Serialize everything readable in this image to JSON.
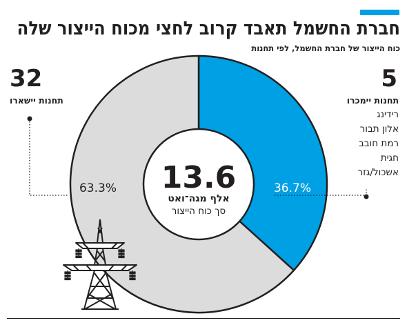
{
  "header": {
    "title": "חברת החשמל תאבד קרוב לחצי מכוח הייצור שלה",
    "subtitle": "כוח הייצור של חברת החשמל, לפי תחנות"
  },
  "left_group": {
    "count": "32",
    "label": "תחנות יישארו"
  },
  "right_group": {
    "count": "5",
    "label": "תחנות יימכרו",
    "stations": [
      "רידינג",
      "אלון תבור",
      "רמת חובב",
      "חגית",
      "אשכול/גזר"
    ]
  },
  "center": {
    "value": "13.6",
    "unit": "אלף מגה־ואט",
    "caption": "סך כוח הייצור"
  },
  "icons": {
    "pylon": "power-pylon-icon"
  },
  "colors": {
    "accent": "#00a0e4",
    "sold": "#00a0e4",
    "remain": "#dcdcdc",
    "outline": "#231f20"
  },
  "chart_data": {
    "type": "pie",
    "slices": [
      {
        "label": "5",
        "value": 36.7,
        "display": "36.7%",
        "color": "#00a0e4"
      },
      {
        "label": "32",
        "value": 63.3,
        "display": "63.3%",
        "color": "#dcdcdc"
      }
    ],
    "title": "חברת החשמל תאבד קרוב לחצי מכוח הייצור שלה",
    "subtitle": "כוח הייצור של חברת החשמל, לפי תחנות",
    "center_total": 13.6,
    "center_unit": "אלף מגה־ואט"
  }
}
